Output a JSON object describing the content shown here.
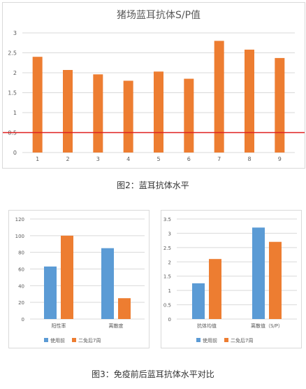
{
  "chart_data": [
    {
      "type": "bar",
      "title": "猪场蓝耳抗体S/P值",
      "categories": [
        "1",
        "2",
        "3",
        "4",
        "5",
        "6",
        "7",
        "8",
        "9"
      ],
      "values": [
        2.4,
        2.07,
        1.96,
        1.8,
        2.03,
        1.85,
        2.8,
        2.58,
        2.37
      ],
      "ylim": [
        0,
        3
      ],
      "yticks": [
        "0",
        "0.5",
        "1",
        "1.5",
        "2",
        "2.5",
        "3"
      ],
      "reference_line": 0.5,
      "colors": {
        "bar": "#ed7d31",
        "line": "#e02020"
      },
      "grid": true
    },
    {
      "type": "bar",
      "categories": [
        "阳性率",
        "离散度"
      ],
      "series": [
        {
          "name": "使用前",
          "values": [
            63,
            85
          ],
          "color": "#5b9bd5"
        },
        {
          "name": "二免后7周",
          "values": [
            100,
            25
          ],
          "color": "#ed7d31"
        }
      ],
      "ylim": [
        0,
        120
      ],
      "yticks": [
        "0",
        "20",
        "40",
        "60",
        "80",
        "100",
        "120"
      ],
      "legend": "bottom",
      "grid": true
    },
    {
      "type": "bar",
      "categories": [
        "抗体均值",
        "离散值（S/P）"
      ],
      "series": [
        {
          "name": "使用前",
          "values": [
            1.25,
            3.2
          ],
          "color": "#5b9bd5"
        },
        {
          "name": "二免后7周",
          "values": [
            2.1,
            2.7
          ],
          "color": "#ed7d31"
        }
      ],
      "ylim": [
        0,
        3.5
      ],
      "yticks": [
        "0",
        "0.5",
        "1",
        "1.5",
        "2",
        "2.5",
        "3",
        "3.5"
      ],
      "legend": "bottom",
      "grid": true
    }
  ],
  "captions": {
    "fig2": "图2：蓝耳抗体水平",
    "fig3": "图3：免疫前后蓝耳抗体水平对比"
  }
}
